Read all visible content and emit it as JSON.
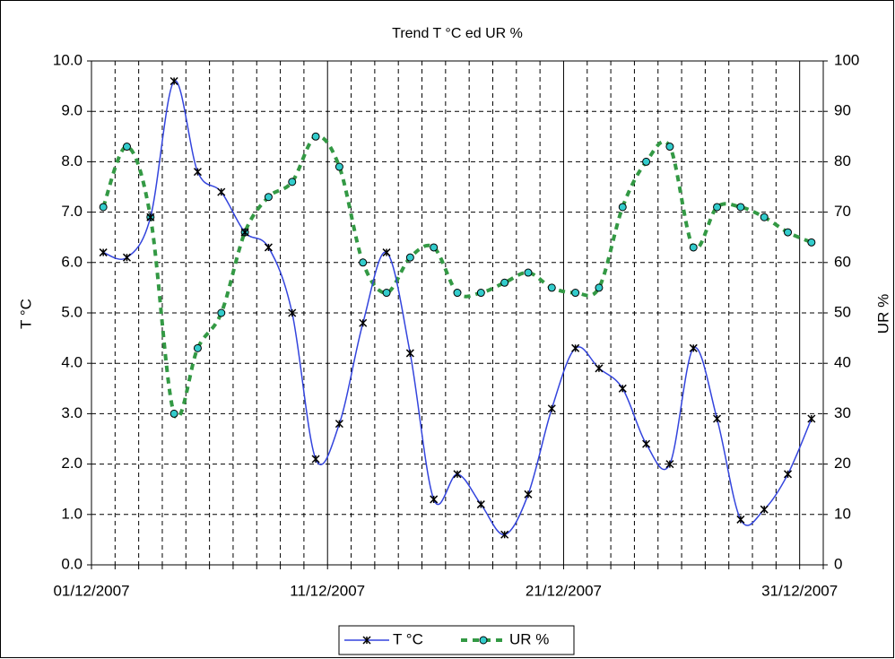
{
  "chart_data": {
    "type": "line",
    "title": "Trend T °C ed UR %",
    "y_label": "T °C",
    "y2_label": "UR %",
    "categories": [
      "01/12/2007",
      null,
      null,
      null,
      null,
      null,
      null,
      null,
      null,
      null,
      "11/12/2007",
      null,
      null,
      null,
      null,
      null,
      null,
      null,
      null,
      null,
      "21/12/2007",
      null,
      null,
      null,
      null,
      null,
      null,
      null,
      null,
      null,
      "31/12/2007"
    ],
    "series": [
      {
        "name": "T °C",
        "color": "#3344dd",
        "marker": "x",
        "values": [
          6.2,
          6.1,
          6.9,
          9.6,
          7.8,
          7.4,
          6.6,
          6.3,
          5.0,
          2.1,
          2.8,
          4.8,
          6.2,
          4.2,
          1.3,
          1.8,
          1.2,
          0.6,
          1.4,
          3.1,
          4.3,
          3.9,
          3.5,
          2.4,
          2.0,
          4.3,
          2.9,
          0.9,
          1.1,
          1.8,
          2.9
        ]
      },
      {
        "name": "UR %",
        "color": "#339944",
        "marker_color": "#33cccc",
        "marker": "circle",
        "dashed": true,
        "axis": "y2",
        "values": [
          71,
          83,
          69,
          30,
          43,
          50,
          66,
          73,
          76,
          85,
          79,
          60,
          54,
          61,
          63,
          54,
          54,
          56,
          58,
          55,
          54,
          55,
          71,
          80,
          83,
          63,
          71,
          71,
          69,
          66,
          64
        ]
      }
    ],
    "ylim": [
      0,
      10
    ],
    "yticks": [
      {
        "value": 0,
        "label": "0.0"
      },
      {
        "value": 1,
        "label": "1.0"
      },
      {
        "value": 2,
        "label": "2.0"
      },
      {
        "value": 3,
        "label": "3.0"
      },
      {
        "value": 4,
        "label": "4.0"
      },
      {
        "value": 5,
        "label": "5.0"
      },
      {
        "value": 6,
        "label": "6.0"
      },
      {
        "value": 7,
        "label": "7.0"
      },
      {
        "value": 8,
        "label": "8.0"
      },
      {
        "value": 9,
        "label": "9.0"
      },
      {
        "value": 10,
        "label": "10.0"
      }
    ],
    "y2lim": [
      0,
      100
    ],
    "y2ticks": [
      0,
      10,
      20,
      30,
      40,
      50,
      60,
      70,
      80,
      90,
      100
    ],
    "grid": true,
    "smooth": true,
    "legend": "bottom"
  }
}
